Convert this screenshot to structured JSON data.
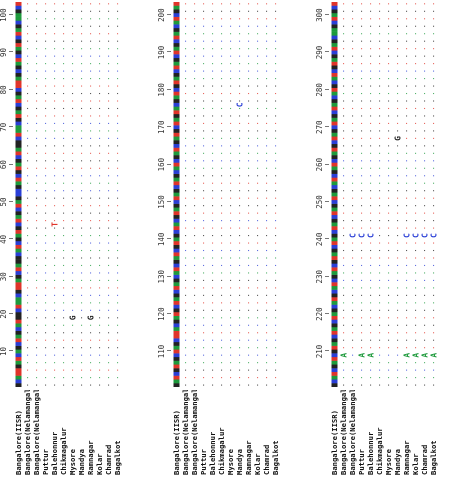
{
  "alignment": {
    "sequence_names": [
      "Bangalore(IISR)",
      "Bangalore(Nelamangala)",
      "Bangalore(Nelamangala)",
      "Puttur",
      "Balehonnur",
      "Chikmagalur",
      "Mysore",
      "Mandya",
      "Ramnagar",
      "Kolar",
      "Chamrad",
      "Bagalkot"
    ],
    "blocks": [
      {
        "ticks": [
          "10",
          "20",
          "30",
          "40",
          "50",
          "60",
          "70",
          "80",
          "90",
          "100"
        ],
        "reference": "GCATTGATCAGCTAGCATGGCTAACGTTAGCTAGGCATCGATGCTAGCTAGCCGATCGTAGCTAGGCTAACGTAGCTAGCTTAGCGATCGATGCTAGCAAGCT",
        "variants": [
          {
            "seq": 6,
            "pos": 18,
            "base": "G"
          },
          {
            "seq": 8,
            "pos": 18,
            "base": "G"
          },
          {
            "seq": 4,
            "pos": 43,
            "base": "T"
          }
        ]
      },
      {
        "ticks": [
          "110",
          "120",
          "130",
          "140",
          "150",
          "160",
          "170",
          "180",
          "190",
          "200"
        ],
        "reference": "GATCGTAGCTAGCTTACGATGCTAGCTAGCATCGATCGTAGCTACGTAGCTAGCTAGCATCGATCGATGCTAGTACGATCGTAGCTAGCTAGCTAGCATCGAT",
        "variants": [
          {
            "seq": 7,
            "pos": 75,
            "base": "C"
          }
        ]
      },
      {
        "ticks": [
          "210",
          "220",
          "230",
          "240",
          "250",
          "260",
          "270",
          "280",
          "290",
          "300"
        ],
        "reference": "GCATCGATCGTAGCTAGCTAGCATGCATCGATCGTAGCTAGCTAGCTAGCTAGCATCGATCGATGCTAGCTAGCTAGCATGCATCGTAGCTAGCAAGCTAGCT",
        "variants": [
          {
            "seq": 0,
            "pos": 8,
            "base": "A"
          },
          {
            "seq": 1,
            "pos": 8,
            "base": "A"
          },
          {
            "seq": 3,
            "pos": 8,
            "base": "A"
          },
          {
            "seq": 4,
            "pos": 8,
            "base": "A"
          },
          {
            "seq": 8,
            "pos": 8,
            "base": "A"
          },
          {
            "seq": 9,
            "pos": 8,
            "base": "A"
          },
          {
            "seq": 10,
            "pos": 8,
            "base": "A"
          },
          {
            "seq": 11,
            "pos": 8,
            "base": "A"
          },
          {
            "seq": 2,
            "pos": 40,
            "base": "C"
          },
          {
            "seq": 3,
            "pos": 40,
            "base": "C"
          },
          {
            "seq": 4,
            "pos": 40,
            "base": "C"
          },
          {
            "seq": 8,
            "pos": 40,
            "base": "C"
          },
          {
            "seq": 9,
            "pos": 40,
            "base": "C"
          },
          {
            "seq": 10,
            "pos": 40,
            "base": "C"
          },
          {
            "seq": 11,
            "pos": 40,
            "base": "C"
          },
          {
            "seq": 7,
            "pos": 66,
            "base": "G"
          }
        ]
      }
    ],
    "base_colors": {
      "A": "#1e9a3c",
      "C": "#2a3fd6",
      "G": "#222222",
      "T": "#e0342a"
    },
    "match_symbol": "."
  }
}
